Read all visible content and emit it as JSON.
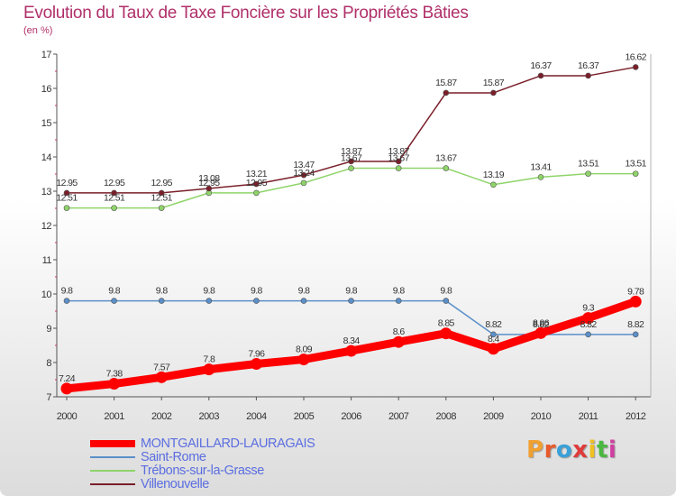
{
  "chart_data": {
    "type": "line",
    "title": "Evolution du Taux de Taxe Foncière sur les Propriétés Bâties",
    "subtitle": "(en %)",
    "x": [
      "2000",
      "2001",
      "2002",
      "2003",
      "2004",
      "2005",
      "2006",
      "2007",
      "2008",
      "2009",
      "2010",
      "2011",
      "2012"
    ],
    "ylim": [
      7,
      17
    ],
    "yticks": [
      "7",
      "8",
      "9",
      "10",
      "11",
      "12",
      "13",
      "14",
      "15",
      "16",
      "17"
    ],
    "grid": false,
    "legend_position": "bottom-left",
    "series": [
      {
        "name": "MONTGAILLARD-LAURAGAIS",
        "color": "#ff0000",
        "values": [
          7.24,
          7.38,
          7.57,
          7.8,
          7.96,
          8.09,
          8.34,
          8.6,
          8.85,
          8.4,
          8.86,
          9.3,
          9.78
        ],
        "labels": [
          "7.24",
          "7.38",
          "7.57",
          "7.8",
          "7.96",
          "8.09",
          "8.34",
          "8.6",
          "8.85",
          "8.4",
          "8.86",
          "9.3",
          "9.78"
        ]
      },
      {
        "name": "Saint-Rome",
        "color": "#5b8fc9",
        "values": [
          9.8,
          9.8,
          9.8,
          9.8,
          9.8,
          9.8,
          9.8,
          9.8,
          9.8,
          8.82,
          8.82,
          8.82,
          8.82
        ],
        "labels": [
          "9.8",
          "9.8",
          "9.8",
          "9.8",
          "9.8",
          "9.8",
          "9.8",
          "9.8",
          "9.8",
          "8.82",
          "8.82",
          "8.82",
          "8.82"
        ]
      },
      {
        "name": "Trébons-sur-la-Grasse",
        "color": "#8fd46a",
        "values": [
          12.51,
          12.51,
          12.51,
          12.95,
          12.95,
          13.24,
          13.67,
          13.67,
          13.67,
          13.19,
          13.41,
          13.51,
          13.51
        ],
        "labels": [
          "12.51",
          "12.51",
          "12.51",
          "12.95",
          "12.95",
          "13.24",
          "13.67",
          "13.67",
          "13.67",
          "13.19",
          "13.41",
          "13.51",
          "13.51"
        ]
      },
      {
        "name": "Villenouvelle",
        "color": "#7a1f2a",
        "values": [
          12.95,
          12.95,
          12.95,
          13.08,
          13.21,
          13.47,
          13.87,
          13.87,
          15.87,
          15.87,
          16.37,
          16.37,
          16.62
        ],
        "labels": [
          "12.95",
          "12.95",
          "12.95",
          "13.08",
          "13.21",
          "13.47",
          "13.87",
          "13.87",
          "15.87",
          "15.87",
          "16.37",
          "16.37",
          "16.62"
        ]
      }
    ]
  },
  "brand": {
    "text": "Proxiti",
    "letter_colors": [
      "#f0a030",
      "#e85a2a",
      "#3aa0d8",
      "#e03a3a",
      "#f0c020",
      "#4ab840",
      "#d040a0"
    ]
  }
}
